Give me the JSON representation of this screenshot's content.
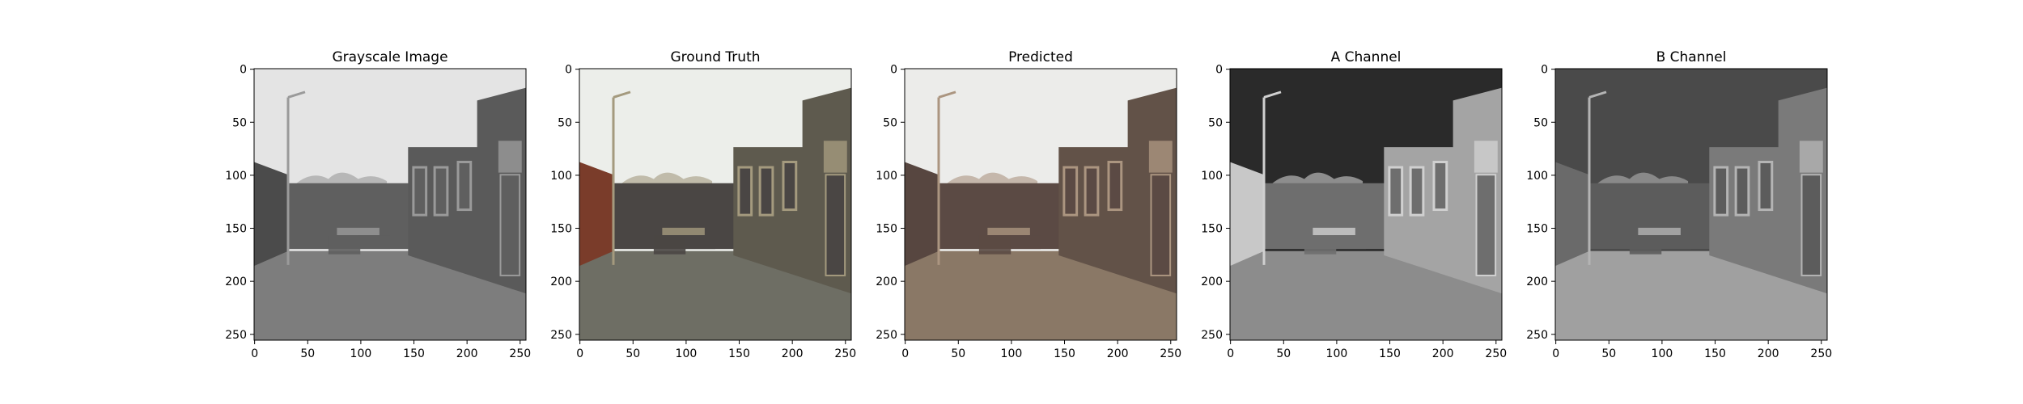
{
  "chart_data": [
    {
      "type": "image",
      "title": "Grayscale Image",
      "xlim": [
        0,
        256
      ],
      "ylim": [
        256,
        0
      ],
      "xticks": [
        0,
        50,
        100,
        150,
        200,
        250
      ],
      "yticks": [
        0,
        50,
        100,
        150,
        200,
        250
      ],
      "render": "gray",
      "sky": "#e4e4e4",
      "wall": "#5f5f5f",
      "left_wall": "#4b4b4b",
      "ground": "#7d7d7d",
      "building": "#5a5a5a",
      "trim": "#9a9a9a"
    },
    {
      "type": "image",
      "title": "Ground Truth",
      "xlim": [
        0,
        256
      ],
      "ylim": [
        256,
        0
      ],
      "xticks": [
        0,
        50,
        100,
        150,
        200,
        250
      ],
      "yticks": [
        0,
        50,
        100,
        150,
        200,
        250
      ],
      "render": "color",
      "sky": "#eceeea",
      "wall": "#4a4644",
      "left_wall": "#7a3c2a",
      "ground": "#6e6e64",
      "building": "#5e5a4e",
      "trim": "#a49a7e"
    },
    {
      "type": "image",
      "title": "Predicted",
      "xlim": [
        0,
        256
      ],
      "ylim": [
        256,
        0
      ],
      "xticks": [
        0,
        50,
        100,
        150,
        200,
        250
      ],
      "yticks": [
        0,
        50,
        100,
        150,
        200,
        250
      ],
      "render": "color",
      "sky": "#ececea",
      "wall": "#5b4a44",
      "left_wall": "#574640",
      "ground": "#8a7866",
      "building": "#625248",
      "trim": "#ab9580"
    },
    {
      "type": "image",
      "title": "A Channel",
      "xlim": [
        0,
        256
      ],
      "ylim": [
        256,
        0
      ],
      "xticks": [
        0,
        50,
        100,
        150,
        200,
        250
      ],
      "yticks": [
        0,
        50,
        100,
        150,
        200,
        250
      ],
      "render": "channel",
      "sky": "#2a2a2a",
      "wall": "#6e6e6e",
      "left_wall": "#c8c8c8",
      "ground": "#8c8c8c",
      "building": "#a4a4a4",
      "trim": "#d0d0d0"
    },
    {
      "type": "image",
      "title": "B Channel",
      "xlim": [
        0,
        256
      ],
      "ylim": [
        256,
        0
      ],
      "xticks": [
        0,
        50,
        100,
        150,
        200,
        250
      ],
      "yticks": [
        0,
        50,
        100,
        150,
        200,
        250
      ],
      "render": "channel",
      "sky": "#4a4a4a",
      "wall": "#5c5c5c",
      "left_wall": "#6a6a6a",
      "ground": "#a0a0a0",
      "building": "#7a7a7a",
      "trim": "#b4b4b4"
    }
  ]
}
